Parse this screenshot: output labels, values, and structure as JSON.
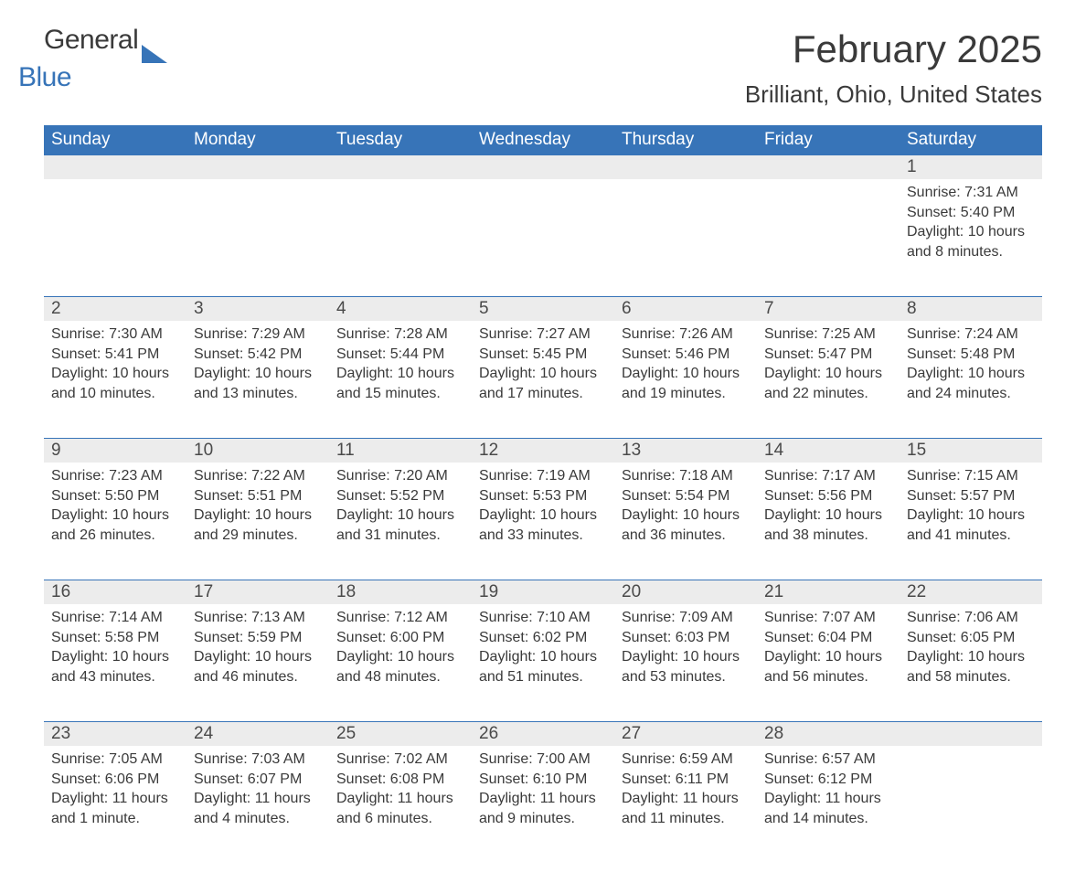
{
  "logo": {
    "text1": "General",
    "text2": "Blue"
  },
  "title": "February 2025",
  "location": "Brilliant, Ohio, United States",
  "colors": {
    "brand": "#3774b8",
    "row_bg": "#ececec",
    "text": "#3a3a3a",
    "bg": "#ffffff"
  },
  "font": {
    "family": "Arial",
    "title_size_pt": 32,
    "location_size_pt": 20,
    "dayname_size_pt": 14,
    "body_size_pt": 12
  },
  "daynames": [
    "Sunday",
    "Monday",
    "Tuesday",
    "Wednesday",
    "Thursday",
    "Friday",
    "Saturday"
  ],
  "weeks": [
    [
      null,
      null,
      null,
      null,
      null,
      null,
      {
        "n": "1",
        "sr": "7:31 AM",
        "ss": "5:40 PM",
        "dl": "10 hours and 8 minutes."
      }
    ],
    [
      {
        "n": "2",
        "sr": "7:30 AM",
        "ss": "5:41 PM",
        "dl": "10 hours and 10 minutes."
      },
      {
        "n": "3",
        "sr": "7:29 AM",
        "ss": "5:42 PM",
        "dl": "10 hours and 13 minutes."
      },
      {
        "n": "4",
        "sr": "7:28 AM",
        "ss": "5:44 PM",
        "dl": "10 hours and 15 minutes."
      },
      {
        "n": "5",
        "sr": "7:27 AM",
        "ss": "5:45 PM",
        "dl": "10 hours and 17 minutes."
      },
      {
        "n": "6",
        "sr": "7:26 AM",
        "ss": "5:46 PM",
        "dl": "10 hours and 19 minutes."
      },
      {
        "n": "7",
        "sr": "7:25 AM",
        "ss": "5:47 PM",
        "dl": "10 hours and 22 minutes."
      },
      {
        "n": "8",
        "sr": "7:24 AM",
        "ss": "5:48 PM",
        "dl": "10 hours and 24 minutes."
      }
    ],
    [
      {
        "n": "9",
        "sr": "7:23 AM",
        "ss": "5:50 PM",
        "dl": "10 hours and 26 minutes."
      },
      {
        "n": "10",
        "sr": "7:22 AM",
        "ss": "5:51 PM",
        "dl": "10 hours and 29 minutes."
      },
      {
        "n": "11",
        "sr": "7:20 AM",
        "ss": "5:52 PM",
        "dl": "10 hours and 31 minutes."
      },
      {
        "n": "12",
        "sr": "7:19 AM",
        "ss": "5:53 PM",
        "dl": "10 hours and 33 minutes."
      },
      {
        "n": "13",
        "sr": "7:18 AM",
        "ss": "5:54 PM",
        "dl": "10 hours and 36 minutes."
      },
      {
        "n": "14",
        "sr": "7:17 AM",
        "ss": "5:56 PM",
        "dl": "10 hours and 38 minutes."
      },
      {
        "n": "15",
        "sr": "7:15 AM",
        "ss": "5:57 PM",
        "dl": "10 hours and 41 minutes."
      }
    ],
    [
      {
        "n": "16",
        "sr": "7:14 AM",
        "ss": "5:58 PM",
        "dl": "10 hours and 43 minutes."
      },
      {
        "n": "17",
        "sr": "7:13 AM",
        "ss": "5:59 PM",
        "dl": "10 hours and 46 minutes."
      },
      {
        "n": "18",
        "sr": "7:12 AM",
        "ss": "6:00 PM",
        "dl": "10 hours and 48 minutes."
      },
      {
        "n": "19",
        "sr": "7:10 AM",
        "ss": "6:02 PM",
        "dl": "10 hours and 51 minutes."
      },
      {
        "n": "20",
        "sr": "7:09 AM",
        "ss": "6:03 PM",
        "dl": "10 hours and 53 minutes."
      },
      {
        "n": "21",
        "sr": "7:07 AM",
        "ss": "6:04 PM",
        "dl": "10 hours and 56 minutes."
      },
      {
        "n": "22",
        "sr": "7:06 AM",
        "ss": "6:05 PM",
        "dl": "10 hours and 58 minutes."
      }
    ],
    [
      {
        "n": "23",
        "sr": "7:05 AM",
        "ss": "6:06 PM",
        "dl": "11 hours and 1 minute."
      },
      {
        "n": "24",
        "sr": "7:03 AM",
        "ss": "6:07 PM",
        "dl": "11 hours and 4 minutes."
      },
      {
        "n": "25",
        "sr": "7:02 AM",
        "ss": "6:08 PM",
        "dl": "11 hours and 6 minutes."
      },
      {
        "n": "26",
        "sr": "7:00 AM",
        "ss": "6:10 PM",
        "dl": "11 hours and 9 minutes."
      },
      {
        "n": "27",
        "sr": "6:59 AM",
        "ss": "6:11 PM",
        "dl": "11 hours and 11 minutes."
      },
      {
        "n": "28",
        "sr": "6:57 AM",
        "ss": "6:12 PM",
        "dl": "11 hours and 14 minutes."
      },
      null
    ]
  ],
  "labels": {
    "sunrise": "Sunrise: ",
    "sunset": "Sunset: ",
    "daylight": "Daylight: "
  }
}
